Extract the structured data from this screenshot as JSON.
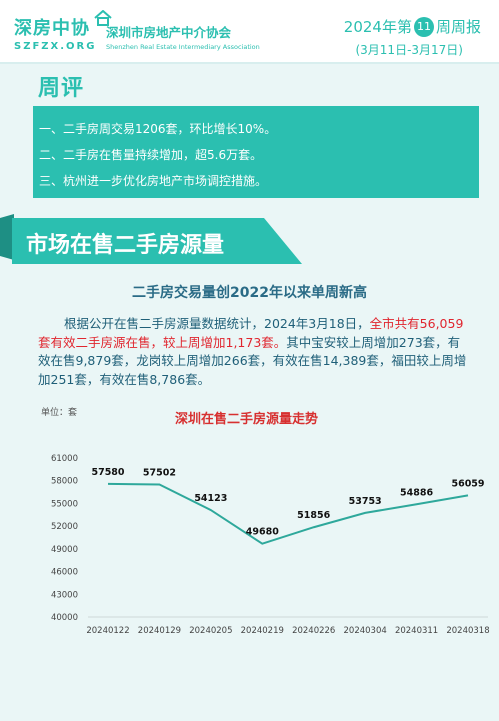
{
  "header": {
    "logo_cn": "深房中协",
    "logo_en": "SZFZX.ORG",
    "assoc_cn": "深圳市房地产中介协会",
    "assoc_en": "Shenzhen Real Estate Intermediary Association",
    "report_prefix": "2024年第",
    "week_number": "11",
    "report_suffix": "周周报",
    "date_range": "(3月11日-3月17日)"
  },
  "review": {
    "tag": "周评",
    "items": [
      "一、二手房周交易1206套，环比增长10%。",
      "二、二手房在售量持续增加，超5.6万套。",
      "三、杭州进一步优化房地产市场调控措施。"
    ]
  },
  "section": {
    "title": "市场在售二手房源量",
    "subtitle": "二手房交易量创2022年以来单周新高",
    "para_1": "根据公开在售二手房源量数据统计，2024年3月18日，",
    "para_hl": "全市共有56,059套有效二手房源在售，较上周增加1,173套。",
    "para_2": "其中宝安较上周增加273套，有效在售9,879套，龙岗较上周增加266套，有效在售14,389套，福田较上周增加251套，有效在售8,786套。"
  },
  "colors": {
    "accent": "#2bbfb0",
    "highlight": "#e0262f",
    "line": "#2ea89b"
  },
  "chart_data": {
    "type": "line",
    "title": "深圳在售二手房源量走势",
    "unit_label": "单位：套",
    "x": [
      "20240122",
      "20240129",
      "20240205",
      "20240219",
      "20240226",
      "20240304",
      "20240311",
      "20240318"
    ],
    "series": [
      {
        "values": [
          57580,
          57502,
          54123,
          49680,
          51856,
          53753,
          54886,
          56059
        ]
      }
    ],
    "ylim": [
      40000,
      61000
    ],
    "yticks": [
      40000,
      43000,
      46000,
      49000,
      52000,
      55000,
      58000,
      61000
    ],
    "grid": false,
    "legend": "none"
  }
}
